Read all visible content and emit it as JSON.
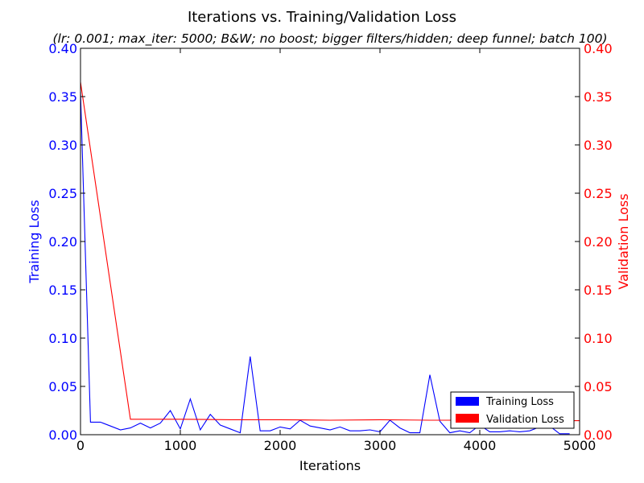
{
  "chart_data": {
    "type": "line",
    "title": "Iterations vs. Training/Validation Loss",
    "subtitle": "(lr: 0.001; max_iter: 5000; B&W; no boost; bigger filters/hidden; deep funnel; batch 100)",
    "xlabel": "Iterations",
    "ylabel_left": "Training Loss",
    "ylabel_right": "Validation Loss",
    "xlim": [
      0,
      5000
    ],
    "ylim_left": [
      0,
      0.4
    ],
    "ylim_right": [
      0,
      0.4
    ],
    "x_ticks": [
      0,
      1000,
      2000,
      3000,
      4000,
      5000
    ],
    "y_ticks": [
      0.0,
      0.05,
      0.1,
      0.15,
      0.2,
      0.25,
      0.3,
      0.35,
      0.4
    ],
    "grid": false,
    "legend_position": "lower-right",
    "series": [
      {
        "name": "Training Loss",
        "color": "#0000ff",
        "axis": "left",
        "x": [
          0,
          100,
          200,
          300,
          400,
          500,
          600,
          700,
          800,
          900,
          1000,
          1100,
          1200,
          1300,
          1400,
          1500,
          1600,
          1700,
          1800,
          1900,
          2000,
          2100,
          2200,
          2300,
          2400,
          2500,
          2600,
          2700,
          2800,
          2900,
          3000,
          3100,
          3200,
          3300,
          3400,
          3500,
          3600,
          3700,
          3800,
          3900,
          4000,
          4100,
          4200,
          4300,
          4400,
          4500,
          4600,
          4700,
          4800,
          4900
        ],
        "y": [
          0.355,
          0.013,
          0.013,
          0.009,
          0.005,
          0.007,
          0.012,
          0.007,
          0.012,
          0.025,
          0.006,
          0.037,
          0.005,
          0.021,
          0.01,
          0.006,
          0.002,
          0.081,
          0.004,
          0.004,
          0.008,
          0.006,
          0.015,
          0.009,
          0.007,
          0.005,
          0.008,
          0.004,
          0.004,
          0.005,
          0.003,
          0.015,
          0.007,
          0.002,
          0.002,
          0.062,
          0.014,
          0.002,
          0.004,
          0.002,
          0.01,
          0.003,
          0.003,
          0.004,
          0.003,
          0.004,
          0.008,
          0.009,
          0.001,
          0.001
        ]
      },
      {
        "name": "Validation Loss",
        "color": "#ff0000",
        "axis": "right",
        "x": [
          0,
          500,
          1000,
          1500,
          2000,
          2500,
          3000,
          3500,
          4000,
          4500,
          5000
        ],
        "y": [
          0.365,
          0.016,
          0.016,
          0.0155,
          0.0155,
          0.015,
          0.0155,
          0.015,
          0.015,
          0.0145,
          0.0145
        ]
      }
    ]
  }
}
